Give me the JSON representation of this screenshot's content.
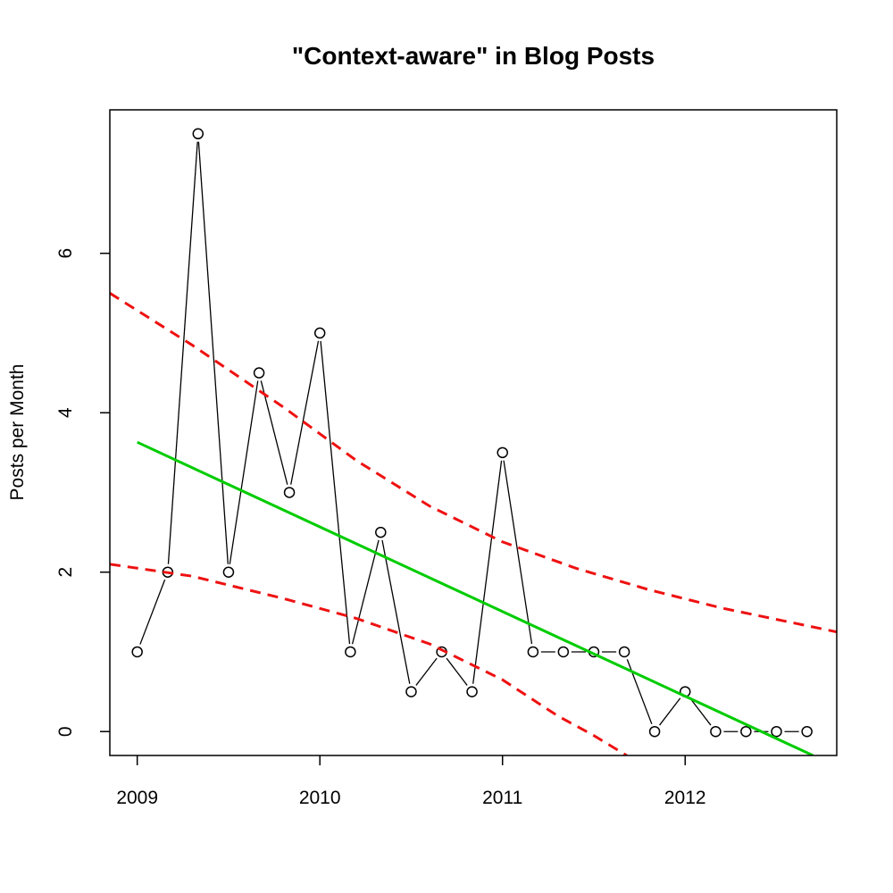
{
  "chart_data": {
    "type": "line",
    "title": "\"Context-aware\" in Blog Posts",
    "xlabel": "",
    "ylabel": "Posts per Month",
    "xlim": [
      2008.85,
      2012.83
    ],
    "ylim": [
      -0.3,
      7.8
    ],
    "x_ticks": [
      2009,
      2010,
      2011,
      2012
    ],
    "x_tick_labels": [
      "2009",
      "2010",
      "2011",
      "2012"
    ],
    "y_ticks": [
      0,
      2,
      4,
      6
    ],
    "y_tick_labels": [
      "0",
      "2",
      "4",
      "6"
    ],
    "grid": false,
    "legend": "none",
    "series": [
      {
        "style": "points-and-lines",
        "color": "#000000",
        "x": [
          2009.0,
          2009.167,
          2009.333,
          2009.5,
          2009.667,
          2009.833,
          2010.0,
          2010.167,
          2010.333,
          2010.5,
          2010.667,
          2010.833,
          2011.0,
          2011.167,
          2011.333,
          2011.5,
          2011.667,
          2011.833,
          2012.0,
          2012.167,
          2012.333,
          2012.5,
          2012.667
        ],
        "values": [
          1,
          2,
          7.5,
          2,
          4.5,
          3,
          5,
          1,
          2.5,
          0.5,
          1,
          0.5,
          3.5,
          1,
          1,
          1,
          1,
          0,
          0.5,
          0,
          0,
          0,
          0
        ]
      },
      {
        "style": "solid-line",
        "color": "#00cc00",
        "x": [
          2009.0,
          2012.7
        ],
        "values": [
          3.63,
          -0.3
        ]
      },
      {
        "style": "dashed-line",
        "color": "#ee1111",
        "x": [
          2008.85,
          2009.3,
          2009.8,
          2010.2,
          2010.6,
          2011.0,
          2011.4,
          2011.8,
          2012.2,
          2012.83
        ],
        "values": [
          5.5,
          4.85,
          4.07,
          3.4,
          2.83,
          2.38,
          2.05,
          1.78,
          1.55,
          1.25
        ]
      },
      {
        "style": "dashed-line",
        "color": "#ee1111",
        "x": [
          2008.85,
          2009.3,
          2009.8,
          2010.2,
          2010.6,
          2011.0,
          2011.3,
          2011.5,
          2011.68
        ],
        "values": [
          2.1,
          1.95,
          1.67,
          1.42,
          1.1,
          0.65,
          0.2,
          -0.05,
          -0.3
        ]
      }
    ]
  }
}
